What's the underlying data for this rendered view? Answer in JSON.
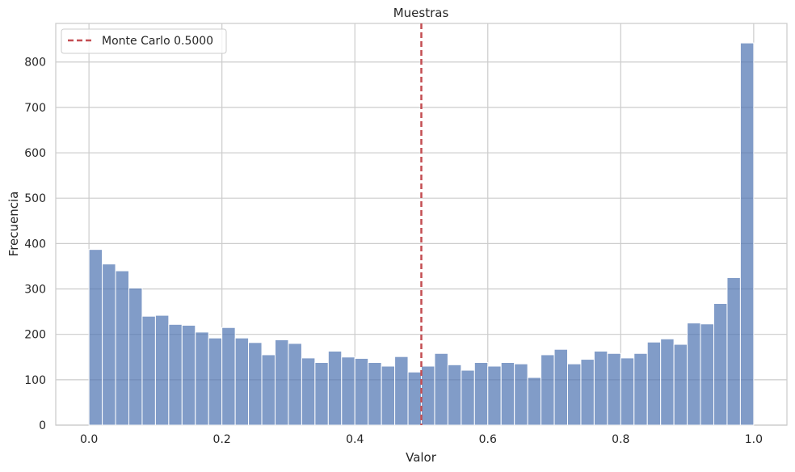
{
  "chart_data": {
    "type": "bar",
    "subtype": "histogram",
    "title": "Muestras",
    "xlabel": "Valor",
    "ylabel": "Frecuencia",
    "xlim": [
      -0.05,
      1.05
    ],
    "ylim": [
      0,
      885
    ],
    "x_ticks": [
      0.0,
      0.2,
      0.4,
      0.6,
      0.8,
      1.0
    ],
    "x_tick_labels": [
      "0.0",
      "0.2",
      "0.4",
      "0.6",
      "0.8",
      "1.0"
    ],
    "y_ticks": [
      0,
      100,
      200,
      300,
      400,
      500,
      600,
      700,
      800
    ],
    "y_tick_labels": [
      "0",
      "100",
      "200",
      "300",
      "400",
      "500",
      "600",
      "700",
      "800"
    ],
    "grid": true,
    "bin_range": [
      0.0,
      1.0
    ],
    "bin_count": 50,
    "values": [
      387,
      355,
      340,
      302,
      240,
      242,
      222,
      220,
      205,
      192,
      215,
      192,
      182,
      155,
      188,
      180,
      148,
      138,
      163,
      150,
      147,
      138,
      130,
      151,
      117,
      130,
      158,
      133,
      121,
      138,
      130,
      138,
      135,
      105,
      155,
      167,
      135,
      145,
      163,
      158,
      148,
      158,
      183,
      190,
      178,
      225,
      223,
      268,
      325,
      842
    ],
    "bar_color": "#4c72b0",
    "reference_line": {
      "x": 0.5,
      "label": "Monte Carlo 0.5000",
      "color": "#c44e52",
      "style": "dashed"
    },
    "legend_position": "top-left"
  }
}
